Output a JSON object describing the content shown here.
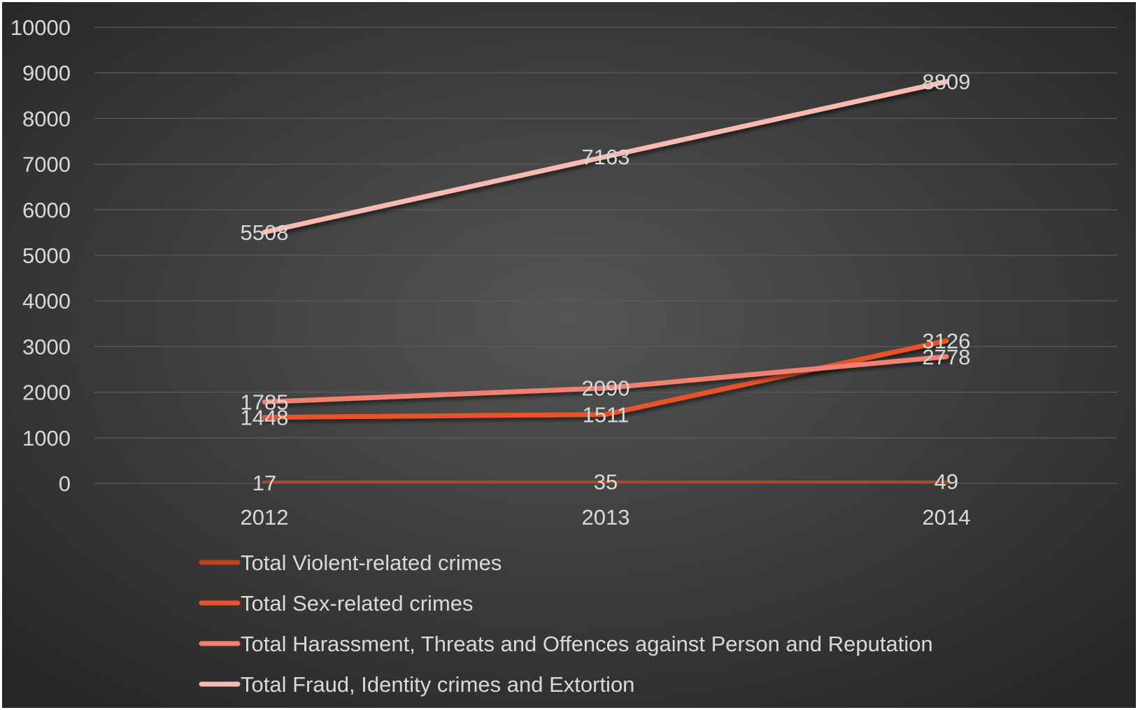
{
  "chart_data": {
    "type": "line",
    "title": "",
    "xlabel": "",
    "ylabel": "",
    "categories": [
      "2012",
      "2013",
      "2014"
    ],
    "ylim": [
      0,
      10000
    ],
    "y_ticks": [
      0,
      1000,
      2000,
      3000,
      4000,
      5000,
      6000,
      7000,
      8000,
      9000,
      10000
    ],
    "y_tick_labels": [
      "0",
      "1000",
      "2000",
      "3000",
      "4000",
      "5000",
      "6000",
      "7000",
      "8000",
      "9000",
      "10000"
    ],
    "grid": true,
    "legend_position": "bottom",
    "background": "dark radial gradient",
    "series": [
      {
        "name": "Total Violent-related crimes",
        "values": [
          17,
          35,
          49
        ],
        "labels": [
          "17",
          "35",
          "49"
        ],
        "color": "#c2401c"
      },
      {
        "name": "Total Sex-related crimes",
        "values": [
          1448,
          1511,
          3126
        ],
        "labels": [
          "1448",
          "1511",
          "3126"
        ],
        "color": "#e8532a"
      },
      {
        "name": "Total Harassment, Threats and Offences against Person and Reputation",
        "values": [
          1785,
          2090,
          2778
        ],
        "labels": [
          "1785",
          "2090",
          "2778"
        ],
        "color": "#f08070"
      },
      {
        "name": "Total Fraud, Identity crimes and Extortion",
        "values": [
          5508,
          7163,
          8809
        ],
        "labels": [
          "5508",
          "7163",
          "8809"
        ],
        "color": "#f7b9b0"
      }
    ]
  },
  "colors": {
    "background_center": "#555555",
    "background_edge": "#262626",
    "gridline": "#5a5a5a",
    "text": "#d9d9d9"
  }
}
